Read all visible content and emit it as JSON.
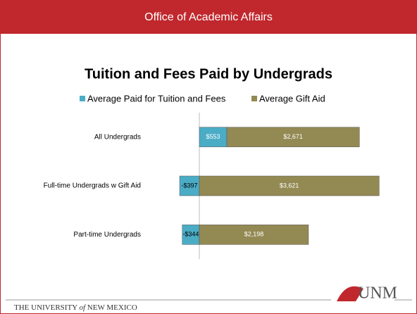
{
  "header": {
    "title": "Office of Academic Affairs"
  },
  "chart_data": {
    "type": "bar",
    "orientation": "horizontal",
    "stacked": true,
    "title": "Tuition and Fees Paid by Undergrads",
    "categories": [
      "All Undergrads",
      "Full-time Undergrads w Gift Aid",
      "Part-time Undergrads"
    ],
    "series": [
      {
        "name": "Average Paid for Tuition and Fees",
        "color": "#4bacc6",
        "values": [
          553,
          -397,
          -344
        ],
        "value_labels": [
          "$553",
          "-$397",
          "-$344"
        ]
      },
      {
        "name": "Average Gift Aid",
        "color": "#938953",
        "values": [
          2671,
          3621,
          2198
        ],
        "value_labels": [
          "$2,671",
          "$3,621",
          "$2,198"
        ]
      }
    ],
    "xlim": [
      -1000,
      4000
    ],
    "legend": "top"
  },
  "footer": {
    "left": "THE UNIVERSITY",
    "of": "of",
    "right": "NEW MEXICO",
    "logo": "UNM"
  }
}
